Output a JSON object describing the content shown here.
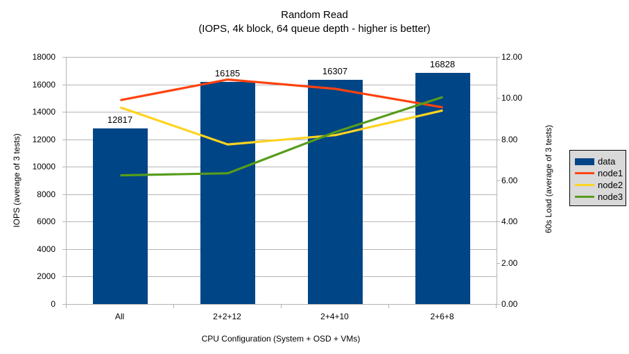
{
  "title": "Random Read",
  "subtitle": "(IOPS, 4k block, 64 queue depth - higher is better)",
  "colors": {
    "bar": "#004586",
    "node1": "#ff420e",
    "node2": "#ffd320",
    "node3": "#579d1c",
    "grid": "#b3b3b3",
    "legend_bg": "#d9d9d9"
  },
  "chart_data": {
    "type": "bar",
    "title": "Random Read",
    "subtitle": "(IOPS, 4k block, 64 queue depth - higher is better)",
    "categories": [
      "All",
      "2+2+12",
      "2+4+10",
      "2+6+8"
    ],
    "series": [
      {
        "name": "data",
        "type": "bar",
        "axis": "left",
        "color": "#004586",
        "values": [
          12817,
          16185,
          16307,
          16828
        ]
      },
      {
        "name": "node1",
        "type": "line",
        "axis": "right",
        "color": "#ff420e",
        "values": [
          9.9,
          10.9,
          10.45,
          9.55
        ]
      },
      {
        "name": "node2",
        "type": "line",
        "axis": "right",
        "color": "#ffd320",
        "values": [
          9.55,
          7.75,
          8.2,
          9.4
        ]
      },
      {
        "name": "node3",
        "type": "line",
        "axis": "right",
        "color": "#579d1c",
        "values": [
          6.25,
          6.35,
          8.35,
          10.05
        ]
      }
    ],
    "bar_labels": [
      "12817",
      "16185",
      "16307",
      "16828"
    ],
    "left_axis": {
      "label": "IOPS (average of 3 tests)",
      "min": 0,
      "max": 18000,
      "step": 2000
    },
    "right_axis": {
      "label": "60s Load (average of 3 tests)",
      "min": 0,
      "max": 12,
      "step": 2,
      "decimals": 2
    },
    "xlabel": "CPU Configuration (System + OSD + VMs)",
    "legend_position": "right",
    "grid": "horizontal"
  }
}
